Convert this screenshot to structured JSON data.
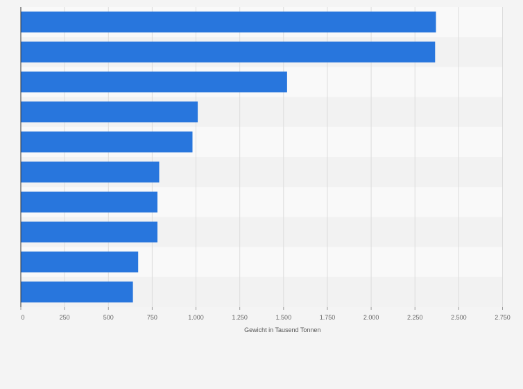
{
  "chart_data": {
    "type": "bar",
    "orientation": "horizontal",
    "categories": [
      "",
      "",
      "",
      "",
      "",
      "",
      "",
      "",
      "",
      ""
    ],
    "values": [
      2370,
      2365,
      1520,
      1010,
      980,
      790,
      780,
      780,
      670,
      640
    ],
    "xlabel": "Gewicht in Tausend Tonnen",
    "xlim": [
      0,
      2750
    ],
    "ticks": [
      0,
      250,
      500,
      750,
      1000,
      1250,
      1500,
      1750,
      2000,
      2250,
      2500,
      2750
    ],
    "tick_labels": [
      "0",
      "250",
      "500",
      "750",
      "1.000",
      "1.250",
      "1.500",
      "1.750",
      "2.000",
      "2.250",
      "2.500",
      "2.750"
    ],
    "grid": true,
    "legend": "none",
    "colors": {
      "bar": "#2876dd",
      "grid": "#dcdcdc",
      "band_light": "#f9f9f9",
      "band_dark": "#f2f2f2",
      "axis": "#333333"
    }
  }
}
